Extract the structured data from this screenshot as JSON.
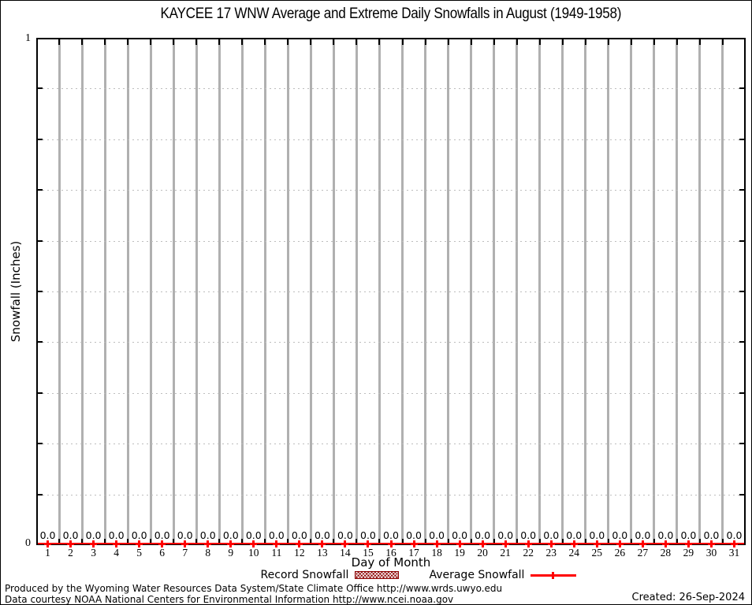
{
  "chart_data": {
    "type": "line",
    "title": "KAYCEE 17 WNW Average and Extreme Daily Snowfalls in August (1949-1958)",
    "xlabel": "Day of Month",
    "ylabel": "Snowfall (Inches)",
    "x": [
      1,
      2,
      3,
      4,
      5,
      6,
      7,
      8,
      9,
      10,
      11,
      12,
      13,
      14,
      15,
      16,
      17,
      18,
      19,
      20,
      21,
      22,
      23,
      24,
      25,
      26,
      27,
      28,
      29,
      30,
      31
    ],
    "series": [
      {
        "name": "Record Snowfall",
        "style": "hatched-box",
        "color": "#8b0000",
        "values": [
          0,
          0,
          0,
          0,
          0,
          0,
          0,
          0,
          0,
          0,
          0,
          0,
          0,
          0,
          0,
          0,
          0,
          0,
          0,
          0,
          0,
          0,
          0,
          0,
          0,
          0,
          0,
          0,
          0,
          0,
          0
        ]
      },
      {
        "name": "Average Snowfall",
        "style": "line-with-points",
        "color": "#ff0000",
        "values": [
          0,
          0,
          0,
          0,
          0,
          0,
          0,
          0,
          0,
          0,
          0,
          0,
          0,
          0,
          0,
          0,
          0,
          0,
          0,
          0,
          0,
          0,
          0,
          0,
          0,
          0,
          0,
          0,
          0,
          0,
          0
        ]
      }
    ],
    "point_label_decimals": 1,
    "ylim": [
      0,
      1
    ],
    "ytick_labels": [
      "0",
      "1"
    ],
    "y_minor_step": 0.1,
    "grid": {
      "x_grid": "solid between days",
      "y_grid": "dotted each 0.1"
    },
    "legend_position": "below plot, centered",
    "colors": {
      "average_line": "#ff0000",
      "record_fill": "#8b0000",
      "grid_major": "#b0b0b0",
      "grid_dotted": "#bdbdbd",
      "axis": "#000000"
    }
  },
  "footer": {
    "line1": "Produced by the Wyoming Water Resources Data System/State Climate Office http://www.wrds.uwyo.edu",
    "line2": "Data courtesy NOAA National Centers for Environmental Information http://www.ncei.noaa.gov",
    "created": "Created: 26-Sep-2024"
  }
}
